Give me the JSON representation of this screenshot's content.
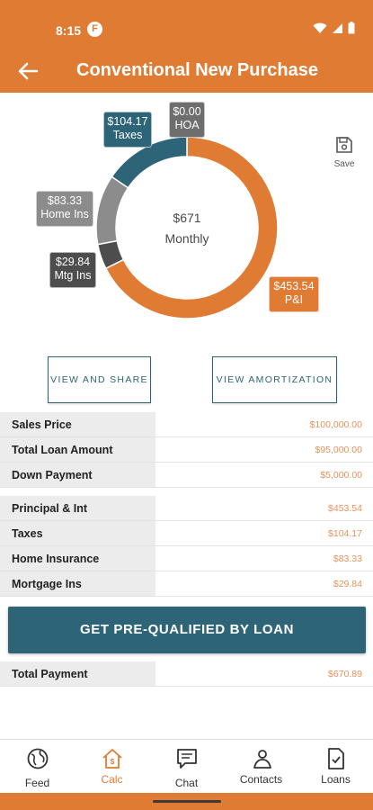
{
  "status": {
    "time": "8:15",
    "app_letter": "F"
  },
  "header": {
    "title": "Conventional New Purchase"
  },
  "chart_data": {
    "type": "pie",
    "style": "donut",
    "center_value": "$671",
    "center_label": "Monthly",
    "slices": [
      {
        "label": "P&I",
        "value": 453.54,
        "display": "$453.54",
        "color": "#e07b34"
      },
      {
        "label": "Mtg Ins",
        "value": 29.84,
        "display": "$29.84",
        "color": "#4d4d4d"
      },
      {
        "label": "Home Ins",
        "value": 83.33,
        "display": "$83.33",
        "color": "#8c8c8c"
      },
      {
        "label": "Taxes",
        "value": 104.17,
        "display": "$104.17",
        "color": "#2e6478"
      },
      {
        "label": "HOA",
        "value": 0.0,
        "display": "$0.00",
        "color": "#6e6e6e"
      }
    ]
  },
  "save_label": "Save",
  "buttons": {
    "view_share": "VIEW AND SHARE",
    "view_amortization": "VIEW AMORTIZATION"
  },
  "loan_rows": [
    {
      "label": "Sales Price",
      "value": "$100,000.00"
    },
    {
      "label": "Total Loan Amount",
      "value": "$95,000.00"
    },
    {
      "label": "Down Payment",
      "value": "$5,000.00"
    }
  ],
  "payment_rows": [
    {
      "label": "Principal & Int",
      "value": "$453.54"
    },
    {
      "label": "Taxes",
      "value": "$104.17"
    },
    {
      "label": "Home Insurance",
      "value": "$83.33"
    },
    {
      "label": "Mortgage Ins",
      "value": "$29.84"
    }
  ],
  "cta": "GET PRE-QUALIFIED BY LOAN",
  "total": {
    "label": "Total Payment",
    "value": "$670.89"
  },
  "tabs": [
    {
      "label": "Feed",
      "icon": "globe-icon"
    },
    {
      "label": "Calc",
      "icon": "home-calc-icon"
    },
    {
      "label": "Chat",
      "icon": "chat-icon"
    },
    {
      "label": "Contacts",
      "icon": "contacts-icon"
    },
    {
      "label": "Loans",
      "icon": "loans-icon"
    }
  ],
  "colors": {
    "brand": "#e07b34",
    "accent": "#2e6478"
  }
}
